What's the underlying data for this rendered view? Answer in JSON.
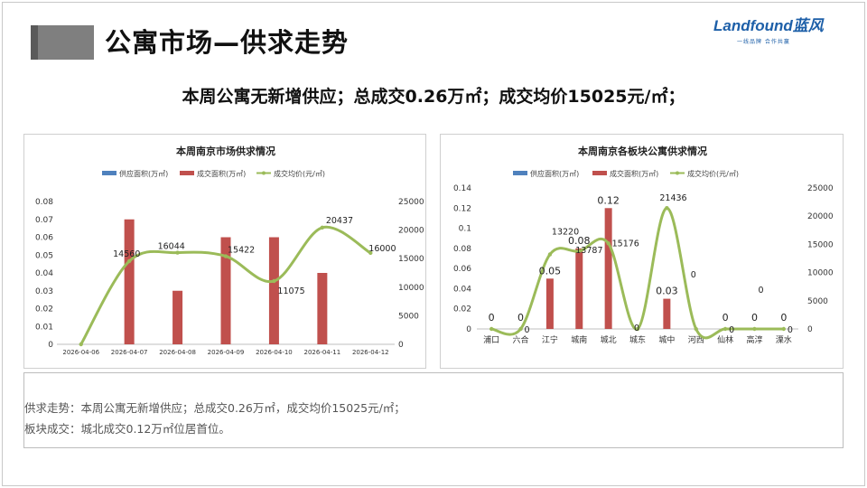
{
  "page": {
    "title": "公寓市场—供求走势",
    "headline": "本周公寓无新增供应；总成交0.26万㎡；成交均价15025元/㎡；",
    "logo": {
      "brand": "Landfound蓝风",
      "tagline": "一线品牌 合作共赢"
    },
    "notes": [
      "供求走势：本周公寓无新增供应；总成交0.26万㎡，成交均价15025元/㎡；",
      "板块成交：城北成交0.12万㎡位居首位。"
    ],
    "colors": {
      "supply": "#4f81bd",
      "deal": "#c0504d",
      "price": "#9bbb59",
      "brand": "#1d5fa8",
      "grey_block": "#7f7f7f"
    }
  },
  "chart_data": [
    {
      "type": "bar",
      "title": "本周南京市场供求情况",
      "legend": [
        "供应面积(万㎡)",
        "成交面积(万㎡)",
        "成交均价(元/㎡)"
      ],
      "legend_position": "top",
      "categories": [
        "2026-04-06",
        "2026-04-07",
        "2026-04-08",
        "2026-04-09",
        "2026-04-10",
        "2026-04-11",
        "2026-04-12"
      ],
      "series": [
        {
          "name": "供应面积(万㎡)",
          "kind": "bar",
          "axis": "left",
          "values": [
            0,
            0,
            0,
            0,
            0,
            0,
            0
          ]
        },
        {
          "name": "成交面积(万㎡)",
          "kind": "bar",
          "axis": "left",
          "values": [
            0,
            0.07,
            0.03,
            0.06,
            0.06,
            0.04,
            0
          ]
        },
        {
          "name": "成交均价(元/㎡)",
          "kind": "line",
          "axis": "right",
          "values": [
            0,
            14560,
            16044,
            15422,
            11075,
            20437,
            16000
          ]
        }
      ],
      "y_left": {
        "min": 0,
        "max": 0.08,
        "ticks": [
          "0",
          "0.01",
          "0.02",
          "0.03",
          "0.04",
          "0.05",
          "0.06",
          "0.07",
          "0.08"
        ]
      },
      "y_right": {
        "min": 0,
        "max": 25000,
        "ticks": [
          "0",
          "5000",
          "10000",
          "15000",
          "20000",
          "25000"
        ]
      },
      "line_labels": [
        "",
        "14560",
        "16044",
        "15422",
        "11075",
        "20437",
        "16000"
      ],
      "bar_labels": [],
      "grid": false
    },
    {
      "type": "bar",
      "title": "本周南京各板块公寓供求情况",
      "legend": [
        "供应面积(万㎡)",
        "成交面积(万㎡)",
        "成交均价(元/㎡)"
      ],
      "legend_position": "top",
      "categories": [
        "浦口",
        "六合",
        "江宁",
        "城南",
        "城北",
        "城东",
        "城中",
        "河西",
        "仙林",
        "高淳",
        "溧水"
      ],
      "series": [
        {
          "name": "供应面积(万㎡)",
          "kind": "bar",
          "axis": "left",
          "values": [
            0,
            0,
            0,
            0,
            0,
            0,
            0,
            0,
            0,
            0,
            0
          ]
        },
        {
          "name": "成交面积(万㎡)",
          "kind": "bar",
          "axis": "left",
          "values": [
            0,
            0,
            0.05,
            0.08,
            0.12,
            0,
            0.03,
            0,
            0,
            0,
            0
          ]
        },
        {
          "name": "成交均价(元/㎡)",
          "kind": "line",
          "axis": "right",
          "values": [
            0,
            0,
            13220,
            13787,
            15176,
            0,
            21436,
            0,
            0,
            0,
            0
          ]
        }
      ],
      "y_left": {
        "min": 0,
        "max": 0.14,
        "ticks": [
          "0",
          "0.02",
          "0.04",
          "0.06",
          "0.08",
          "0.1",
          "0.12",
          "0.14"
        ]
      },
      "y_right": {
        "min": 0,
        "max": 25000,
        "ticks": [
          "0",
          "5000",
          "10000",
          "15000",
          "20000",
          "25000"
        ]
      },
      "bar_labels": [
        "0",
        "0",
        "0.05",
        "0.08",
        "0.12",
        "",
        "0.03",
        "",
        "0",
        "0",
        "0"
      ],
      "line_labels": [
        "",
        "0",
        "13220",
        "13787",
        "15176",
        "0",
        "21436",
        "0",
        "0",
        "0",
        "0"
      ],
      "grid": false
    }
  ]
}
